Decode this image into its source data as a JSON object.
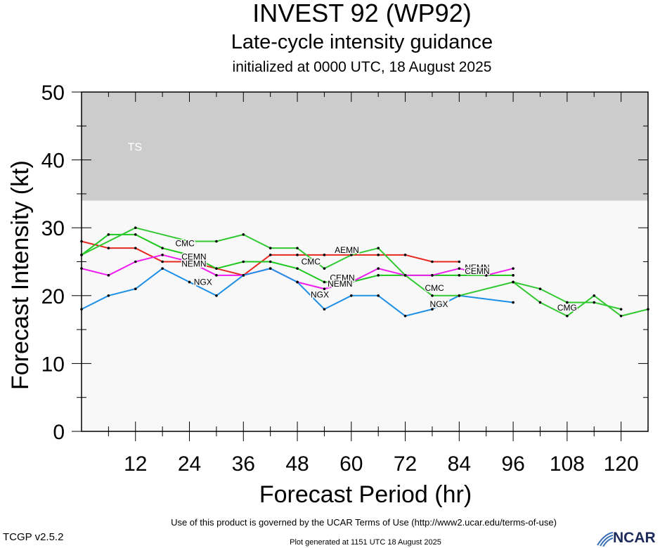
{
  "header": {
    "title": "INVEST 92 (WP92)",
    "subtitle": "Late-cycle intensity guidance",
    "init": "initialized at 0000 UTC, 18 August 2025"
  },
  "footer": {
    "terms": "Use of this product is governed by the UCAR Terms of Use (http://www2.ucar.edu/terms-of-use)",
    "version": "TCGP v2.5.2",
    "generated": "Plot generated at 1151 UTC   18 August 2025",
    "logo_text": "NCAR"
  },
  "chart_data": {
    "type": "line",
    "xlabel": "Forecast Period (hr)",
    "ylabel": "Forecast Intensity (kt)",
    "xlim": [
      0,
      126
    ],
    "ylim": [
      0,
      50
    ],
    "xticks": [
      12,
      24,
      36,
      48,
      60,
      72,
      84,
      96,
      108,
      120
    ],
    "yticks": [
      0,
      10,
      20,
      30,
      40,
      50
    ],
    "bands": [
      {
        "label": "TS",
        "from": 34,
        "to": 50,
        "color": "#cccccc"
      }
    ],
    "below_band_color": "#f8f8f8",
    "series": [
      {
        "name": "AEMN",
        "color": "#e6281e",
        "x": [
          0,
          6,
          12,
          18,
          24,
          30,
          36,
          42,
          48,
          54,
          60,
          66,
          72,
          78,
          84
        ],
        "y": [
          28,
          27,
          27,
          25,
          25,
          24,
          23,
          26,
          26,
          26,
          26,
          26,
          26,
          25,
          25
        ]
      },
      {
        "name": "CEMN",
        "color": "#1ec81e",
        "x": [
          0,
          6,
          12,
          18,
          24,
          30,
          36,
          42,
          48,
          54,
          60,
          66,
          72,
          78,
          84,
          90,
          96
        ],
        "y": [
          26,
          29,
          29,
          27,
          26,
          24,
          25,
          25,
          24,
          22,
          22,
          23,
          23,
          23,
          23,
          23,
          23
        ]
      },
      {
        "name": "NEMN",
        "color": "#ee1cee",
        "x": [
          0,
          6,
          12,
          18,
          24,
          30,
          36,
          42,
          48,
          54,
          60,
          66,
          72,
          78,
          84,
          90,
          96
        ],
        "y": [
          24,
          23,
          25,
          26,
          25,
          23,
          23,
          24,
          22,
          21,
          22,
          24,
          23,
          23,
          24,
          23,
          24
        ]
      },
      {
        "name": "NGX",
        "color": "#1e90e6",
        "x": [
          0,
          6,
          12,
          18,
          24,
          30,
          36,
          42,
          48,
          54,
          60,
          66,
          72,
          78,
          84,
          96
        ],
        "y": [
          18,
          20,
          21,
          24,
          22,
          20,
          23,
          24,
          22,
          18,
          20,
          20,
          17,
          18,
          20,
          19
        ]
      },
      {
        "name": "CMC",
        "color": "#32c832",
        "x": [
          0,
          12,
          24,
          30,
          36,
          42,
          48,
          54,
          60,
          66,
          72,
          78,
          84
        ],
        "y": [
          26,
          30,
          28,
          28,
          29,
          27,
          27,
          24,
          26,
          27,
          23,
          20,
          20
        ]
      },
      {
        "name": "CMG",
        "color": "#32c832",
        "x": [
          84,
          96,
          102,
          108,
          114,
          120,
          126
        ],
        "y": [
          20,
          22,
          19,
          17,
          20,
          17,
          18
        ]
      },
      {
        "name": "",
        "color": "#32c832",
        "x": [
          96,
          102,
          108,
          114,
          120
        ],
        "y": [
          22,
          21,
          19,
          19,
          18
        ]
      }
    ],
    "labels": [
      {
        "text": "AEMN",
        "x": 59,
        "y": 26.3
      },
      {
        "text": "CEMN",
        "x": 25,
        "y": 25.3
      },
      {
        "text": "NEMN",
        "x": 25,
        "y": 24.3
      },
      {
        "text": "CEMN",
        "x": 58,
        "y": 22.2
      },
      {
        "text": "NEMN",
        "x": 57.5,
        "y": 21.3
      },
      {
        "text": "NEMN",
        "x": 88,
        "y": 23.7
      },
      {
        "text": "CEMN",
        "x": 88,
        "y": 23.2
      },
      {
        "text": "CMC",
        "x": 23,
        "y": 27.3
      },
      {
        "text": "CMC",
        "x": 51,
        "y": 24.6
      },
      {
        "text": "CMC",
        "x": 78.5,
        "y": 20.7
      },
      {
        "text": "CMG",
        "x": 108,
        "y": 17.8
      },
      {
        "text": "NGX",
        "x": 27,
        "y": 21.6
      },
      {
        "text": "NGX",
        "x": 53,
        "y": 19.7
      },
      {
        "text": "NGX",
        "x": 79.5,
        "y": 18.3
      }
    ],
    "band_labels": [
      {
        "text": "TS",
        "x": 4,
        "y": 42
      }
    ]
  }
}
